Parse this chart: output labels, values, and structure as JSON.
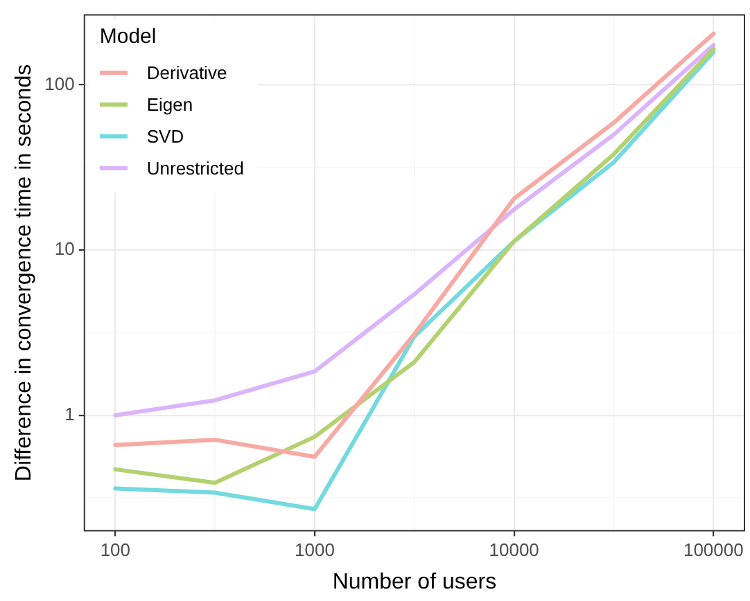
{
  "chart_data": {
    "type": "line",
    "xlabel": "Number of users",
    "ylabel": "Difference in convergence time in seconds",
    "legend_title": "Model",
    "log": "xy",
    "grid": true,
    "legend": "top left",
    "marker": "none",
    "line_style": "solid",
    "x": [
      100,
      316,
      1000,
      3162,
      10000,
      31623,
      100000
    ],
    "xlim": [
      70,
      143000
    ],
    "ylim": [
      0.2,
      265
    ],
    "xticks": [
      100,
      {
        "value": 316,
        "label": null
      },
      1000,
      {
        "value": 3162,
        "label": null
      },
      10000,
      {
        "value": 31623,
        "label": null
      },
      100000
    ],
    "yticks": [
      {
        "value": 0.316,
        "label": null
      },
      1,
      {
        "value": 3.16,
        "label": null
      },
      10,
      {
        "value": 31.6,
        "label": null
      },
      100
    ],
    "series": [
      {
        "name": "Derivative",
        "color": "#f7a9a3",
        "values": [
          0.66,
          0.71,
          0.56,
          3.1,
          20.5,
          59,
          204
        ]
      },
      {
        "name": "Eigen",
        "color": "#b3d16e",
        "values": [
          0.47,
          0.39,
          0.74,
          2.1,
          11.3,
          38,
          165
        ]
      },
      {
        "name": "SVD",
        "color": "#72dadf",
        "values": [
          0.36,
          0.34,
          0.27,
          3.0,
          11.3,
          34,
          158
        ]
      },
      {
        "name": "Unrestricted",
        "color": "#dbb4fb",
        "values": [
          1.0,
          1.23,
          1.84,
          5.4,
          17.6,
          50,
          174
        ]
      }
    ]
  }
}
